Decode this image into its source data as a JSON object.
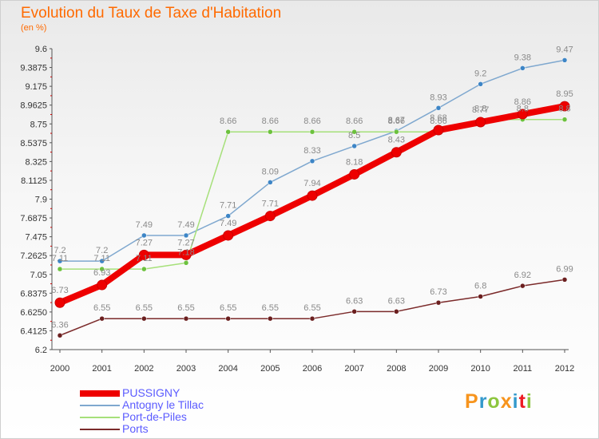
{
  "title": "Evolution du Taux de Taxe d'Habitation",
  "unit_label": "(en %)",
  "logo": {
    "letters": [
      "P",
      "r",
      "o",
      "x",
      "i",
      "t",
      "i"
    ],
    "colors": [
      "#f7941d",
      "#3399cc",
      "#8dc63f",
      "#f7941d",
      "#3399cc",
      "#ed1c24",
      "#8dc63f"
    ]
  },
  "chart_data": {
    "type": "line",
    "categories": [
      "2000",
      "2001",
      "2002",
      "2003",
      "2004",
      "2005",
      "2006",
      "2007",
      "2008",
      "2009",
      "2010",
      "2011",
      "2012"
    ],
    "yticks": [
      "6.2",
      "6.4125",
      "6.6250",
      "6.8375",
      "7.05",
      "7.2625",
      "7.475",
      "7.6875",
      "7.9",
      "8.1125",
      "8.325",
      "8.5375",
      "8.75",
      "8.9625",
      "9.175",
      "9.3875",
      "9.6"
    ],
    "ylim": [
      6.2,
      9.6
    ],
    "grid": false,
    "legend_position": "bottom-left",
    "series": [
      {
        "name": "PUSSIGNY",
        "color": "#ee0000",
        "width": 8,
        "point_radius": 6,
        "label_color": "#8a8a8a",
        "values": [
          6.73,
          6.93,
          7.27,
          7.27,
          7.49,
          7.71,
          7.94,
          8.18,
          8.43,
          8.68,
          8.77,
          8.86,
          8.95
        ],
        "labels": [
          "6.73",
          "6.93",
          "7.27",
          "7.27",
          "7.49",
          "7.71",
          "7.94",
          "8.18",
          "8.43",
          "8.68",
          "8.77",
          "8.86",
          "8.95"
        ]
      },
      {
        "name": "Antogny le Tillac",
        "color": "#7fa8cf",
        "width": 1.5,
        "point_radius": 3,
        "point_color": "#3d85c6",
        "label_color": "#8a8a8a",
        "values": [
          7.2,
          7.2,
          7.49,
          7.49,
          7.71,
          8.09,
          8.33,
          8.5,
          8.67,
          8.93,
          9.2,
          9.38,
          9.47
        ],
        "labels": [
          "7.2",
          "7.2",
          "7.49",
          "7.49",
          "7.71",
          "8.09",
          "8.33",
          "8.5",
          "8.67",
          "8.93",
          "9.2",
          "9.38",
          "9.47"
        ]
      },
      {
        "name": "Port-de-Piles",
        "color": "#a6e07a",
        "width": 1.5,
        "point_radius": 3,
        "point_color": "#6cc13d",
        "label_color": "#8a8a8a",
        "values": [
          7.11,
          7.11,
          7.11,
          7.18,
          8.66,
          8.66,
          8.66,
          8.66,
          8.66,
          8.66,
          8.8,
          8.8,
          8.8
        ],
        "labels": [
          "7.11",
          "7.11",
          "7.11",
          "7.18",
          "8.66",
          "8.66",
          "8.66",
          "8.66",
          "8.66",
          "8.66",
          "8.8",
          "8.8",
          "8.8"
        ]
      },
      {
        "name": "Ports",
        "color": "#7b2a2a",
        "width": 1.5,
        "point_radius": 3,
        "point_color": "#6b1f1f",
        "label_color": "#8a8a8a",
        "values": [
          6.36,
          6.55,
          6.55,
          6.55,
          6.55,
          6.55,
          6.55,
          6.63,
          6.63,
          6.73,
          6.8,
          6.92,
          6.99
        ],
        "labels": [
          "6.36",
          "6.55",
          "6.55",
          "6.55",
          "6.55",
          "6.55",
          "6.55",
          "6.63",
          "6.63",
          "6.73",
          "6.8",
          "6.92",
          "6.99"
        ]
      }
    ]
  }
}
